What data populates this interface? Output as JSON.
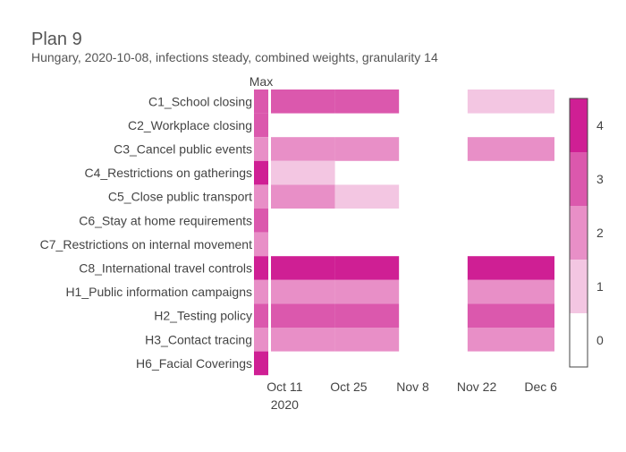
{
  "chart_data": {
    "type": "heatmap",
    "title": "Plan 9",
    "subtitle": "Hungary, 2020-10-08, infections steady, combined weights, granularity 14",
    "max_label": "Max",
    "rows": [
      "C1_School closing",
      "C2_Workplace closing",
      "C3_Cancel public events",
      "C4_Restrictions on gatherings",
      "C5_Close public transport",
      "C6_Stay at home requirements",
      "C7_Restrictions on internal movement",
      "C8_International travel controls",
      "H1_Public information campaigns",
      "H2_Testing policy",
      "H3_Contact tracing",
      "H6_Facial Coverings"
    ],
    "max_values": [
      3,
      3,
      2,
      4,
      2,
      3,
      2,
      4,
      2,
      3,
      2,
      4
    ],
    "x_ticks": [
      {
        "date": "2020-10-11",
        "label": "Oct 11",
        "sublabel": "2020"
      },
      {
        "date": "2020-10-25",
        "label": "Oct 25",
        "sublabel": ""
      },
      {
        "date": "2020-11-08",
        "label": "Nov 8",
        "sublabel": ""
      },
      {
        "date": "2020-11-22",
        "label": "Nov 22",
        "sublabel": ""
      },
      {
        "date": "2020-12-06",
        "label": "Dec 6",
        "sublabel": ""
      }
    ],
    "x_range": [
      "2020-10-08",
      "2020-12-09"
    ],
    "periods": [
      {
        "start": "2020-10-08",
        "end": "2020-10-22"
      },
      {
        "start": "2020-10-22",
        "end": "2020-11-05"
      },
      {
        "start": "2020-11-20",
        "end": "2020-12-09"
      }
    ],
    "cells": [
      [
        3,
        3,
        1
      ],
      [
        null,
        null,
        null
      ],
      [
        2,
        2,
        2
      ],
      [
        1,
        null,
        null
      ],
      [
        2,
        1,
        null
      ],
      [
        null,
        null,
        null
      ],
      [
        null,
        null,
        null
      ],
      [
        4,
        4,
        4
      ],
      [
        2,
        2,
        2
      ],
      [
        3,
        3,
        3
      ],
      [
        2,
        2,
        2
      ],
      [
        null,
        null,
        null
      ]
    ],
    "colorscale": {
      "min": -0.5,
      "max": 4.5,
      "colors": [
        "#ffffff",
        "#f3c6e2",
        "#e88fc7",
        "#db58ad",
        "#cf1f94"
      ],
      "ticks": [
        0,
        1,
        2,
        3,
        4
      ]
    }
  }
}
